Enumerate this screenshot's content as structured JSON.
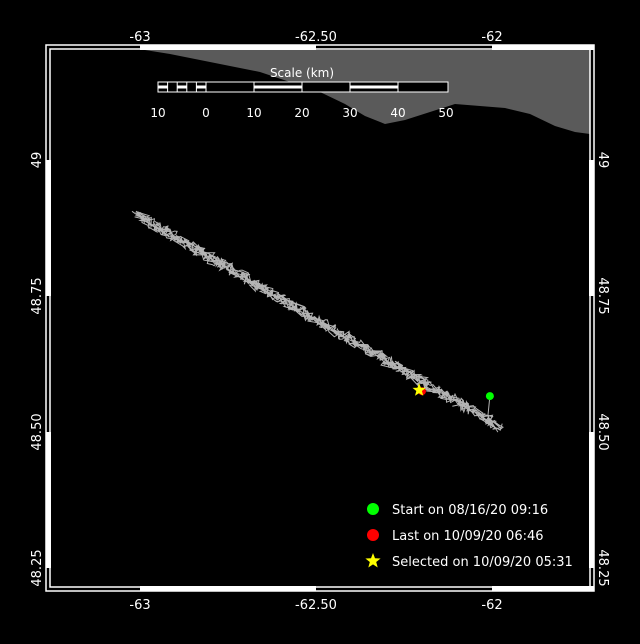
{
  "map": {
    "lon_range": [
      -63.27,
      -61.7
    ],
    "lat_range": [
      48.21,
      49.21
    ],
    "x_ticks": [
      {
        "value": -63,
        "label": "-63"
      },
      {
        "value": -62.5,
        "label": "-62.50"
      },
      {
        "value": -62,
        "label": "-62"
      }
    ],
    "y_ticks": [
      {
        "value": 49,
        "label": "49"
      },
      {
        "value": 48.75,
        "label": "48.75"
      },
      {
        "value": 48.5,
        "label": "48.50"
      },
      {
        "value": 48.25,
        "label": "48.25"
      }
    ],
    "colors": {
      "background": "#000000",
      "land": "#5a5a5a",
      "track": "#b4b4b4",
      "start": "#00ff00",
      "last": "#ff0000",
      "selected": "#ffff00",
      "frame": "#ffffff"
    },
    "track": {
      "from": [
        -63.01,
        48.9
      ],
      "to": [
        -61.98,
        48.51
      ]
    },
    "start": {
      "lon": -62.006,
      "lat": 48.566
    },
    "last": {
      "lon": -62.199,
      "lat": 48.575
    },
    "selected": {
      "lon": -62.207,
      "lat": 48.577
    }
  },
  "scale": {
    "title": "Scale (km)",
    "labels": [
      "10",
      "0",
      "10",
      "20",
      "30",
      "40",
      "50"
    ]
  },
  "legend": {
    "start": {
      "icon": "green-circle",
      "label": "Start on 08/16/20 09:16"
    },
    "last": {
      "icon": "red-circle",
      "label": "Last on 10/09/20 06:46"
    },
    "selected": {
      "icon": "yellow-star",
      "label": "Selected on 10/09/20 05:31"
    }
  }
}
